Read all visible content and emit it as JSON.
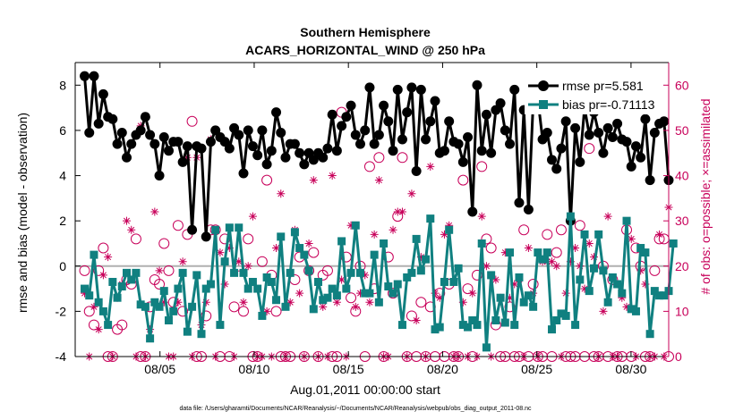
{
  "chart_data": {
    "type": "line",
    "title": [
      "Southern Hemisphere",
      "ACARS_HORIZONTAL_WIND @ 250 hPa"
    ],
    "xlabel": "Aug.01,2011 00:00:00 start",
    "ylabel": "rmse and bias (model - observation)",
    "y2label": "# of obs: o=possible; ×=assimilated",
    "footer": "data file: /Users/gharamti/Documents/NCAR/Reanalysis/~/Documents/NCAR/Reanalysis/webpub/obs_diag_output_2011-08.nc",
    "xlim": [
      0.5,
      32
    ],
    "ylim": [
      -4,
      9
    ],
    "y2lim": [
      0,
      65
    ],
    "xtick_positions": [
      5,
      10,
      15,
      20,
      25,
      30
    ],
    "xtick_labels": [
      "08/05",
      "08/10",
      "08/15",
      "08/20",
      "08/25",
      "08/30"
    ],
    "yticks": [
      -4,
      -2,
      0,
      2,
      4,
      6,
      8
    ],
    "y2ticks": [
      0,
      10,
      20,
      30,
      40,
      50,
      60
    ],
    "zero_line": 0,
    "legend_placement": "top-right",
    "colors": {
      "rmse": "#000000",
      "bias": "#108080",
      "obs": "#c8005a",
      "zero": "#b0b0b0"
    },
    "series": [
      {
        "name": "rmse pr=5.581",
        "values": [
          8.4,
          5.9,
          8.4,
          6.3,
          7.6,
          6.6,
          6.5,
          5.4,
          5.9,
          4.8,
          5.4,
          5.8,
          6.0,
          6.6,
          5.8,
          5.4,
          4.0,
          5.7,
          5.1,
          5.5,
          5.5,
          4.6,
          5.3,
          1.6,
          5.3,
          5.2,
          1.3,
          5.5,
          6.0,
          5.7,
          5.5,
          5.2,
          6.1,
          5.8,
          4.1,
          6.0,
          5.3,
          4.9,
          6.0,
          4.5,
          5.1,
          6.8,
          5.9,
          4.8,
          5.4,
          5.4,
          5.0,
          4.5,
          5.0,
          4.7,
          5.0,
          4.8,
          5.2,
          6.7,
          5.1,
          6.2,
          6.6,
          7.1,
          5.8,
          5.4,
          6.0,
          7.9,
          5.4,
          5.8,
          7.1,
          6.4,
          5.1,
          7.8,
          5.6,
          6.8,
          7.9,
          4.2,
          7.8,
          5.6,
          6.4,
          7.3,
          5.0,
          5.1,
          6.4,
          5.5,
          5.4,
          4.6,
          5.7,
          2.4,
          8.0,
          5.1,
          6.7,
          5.0,
          6.9,
          7.2,
          6.0,
          5.4,
          7.8,
          2.8,
          6.9,
          2.5,
          7.2,
          7.4,
          5.6,
          5.9,
          4.7,
          4.3,
          5.2,
          6.4,
          2.0,
          6.1,
          4.6,
          7.0,
          5.8,
          6.8,
          5.9,
          5.0,
          6.1,
          5.7,
          6.3,
          5.6,
          5.5,
          4.4,
          5.3,
          4.8,
          6.5,
          3.8,
          5.9,
          6.3,
          6.4,
          3.8
        ],
        "marker": "circle",
        "line_color": "#000000"
      },
      {
        "name": "bias pr=-0.71113",
        "values": [
          -1.0,
          -1.3,
          0.5,
          -1.6,
          -2.0,
          -2.6,
          -0.7,
          -1.4,
          -0.9,
          -0.3,
          -0.6,
          -0.3,
          -1.7,
          -1.8,
          -3.2,
          -1.6,
          -1.8,
          -1.1,
          -2.4,
          -2.0,
          -1.0,
          -0.3,
          -2.9,
          -1.8,
          -0.4,
          -3.0,
          -1.0,
          -0.8,
          1.6,
          -2.6,
          0.2,
          1.7,
          -0.3,
          1.7,
          -0.3,
          -1.0,
          -0.7,
          -1.0,
          -2.2,
          -0.5,
          -0.7,
          -1.5,
          1.3,
          -1.8,
          -0.3,
          1.5,
          0.8,
          0.5,
          -0.2,
          -1.9,
          -0.7,
          -1.5,
          -1.4,
          -1.0,
          -1.3,
          1.1,
          -1.0,
          -0.3,
          1.8,
          -0.3,
          -1.2,
          -1.2,
          0.5,
          -1.6,
          1.0,
          -0.9,
          -1.2,
          -0.8,
          -2.6,
          -0.5,
          -0.3,
          1.2,
          -0.2,
          0.3,
          2.1,
          -2.8,
          -2.7,
          -0.7,
          1.6,
          -0.7,
          -0.1,
          -2.6,
          -2.7,
          -2.4,
          -2.6,
          1.0,
          -3.6,
          -0.4,
          -2.4,
          -1.4,
          -2.5,
          0.6,
          -2.6,
          -0.5,
          -1.6,
          -1.3,
          -1.8,
          0.6,
          0.3,
          0.6,
          -2.8,
          -2.4,
          -2.1,
          -2.2,
          2.2,
          -2.6,
          -0.6,
          1.4,
          -1.1,
          -0.1,
          1.4,
          -0.2,
          -1.6,
          -0.5,
          -0.8,
          -1.2,
          2.0,
          -1.9,
          -2.0,
          0.8,
          0.6,
          -3.0,
          -1.1,
          -1.3,
          -1.3,
          -1.1,
          1.0
        ],
        "marker": "square",
        "line_color": "#108080"
      }
    ],
    "obs_possible": [
      19,
      10,
      7,
      19,
      24,
      0,
      0,
      6,
      7,
      17,
      16,
      26,
      0,
      0,
      11,
      17,
      16,
      25,
      19,
      12,
      29,
      10,
      27,
      52,
      0,
      0,
      9,
      28,
      28,
      0,
      26,
      0,
      11,
      20,
      10,
      26,
      0,
      0,
      21,
      39,
      18,
      10,
      0,
      0,
      0,
      17,
      22,
      0,
      19,
      23,
      0,
      18,
      19,
      0,
      0,
      54,
      22,
      13,
      10,
      20,
      0,
      42,
      15,
      44,
      0,
      22,
      14,
      31,
      44,
      0,
      9,
      0,
      12,
      0,
      11,
      0,
      14,
      0,
      16,
      0,
      0,
      39,
      15,
      0,
      18,
      42,
      26,
      24,
      7,
      0,
      0,
      11,
      0,
      0,
      28,
      0,
      16,
      0,
      0,
      27,
      0,
      23,
      28,
      0,
      0,
      0,
      29,
      0,
      46,
      0,
      0,
      20,
      0,
      17,
      0,
      0,
      28,
      0,
      24,
      20,
      0,
      0,
      19,
      26,
      26,
      0
    ],
    "obs_assimilated": [
      14,
      0,
      11,
      6,
      18,
      22,
      0,
      13,
      16,
      30,
      28,
      0,
      51,
      0,
      6,
      32,
      19,
      12,
      0,
      0,
      12,
      21,
      44,
      0,
      44,
      7,
      12,
      48,
      0,
      23,
      16,
      24,
      0,
      21,
      12,
      20,
      31,
      0,
      0,
      10,
      0,
      24,
      36,
      0,
      12,
      28,
      14,
      0,
      25,
      39,
      0,
      11,
      0,
      40,
      12,
      17,
      0,
      29,
      11,
      14,
      18,
      12,
      27,
      39,
      0,
      0,
      28,
      32,
      32,
      0,
      36,
      8,
      22,
      0,
      42,
      14,
      13,
      27,
      29,
      0,
      0,
      12,
      0,
      14,
      0,
      31,
      20,
      0,
      17,
      13,
      23,
      13,
      16,
      17,
      0,
      24,
      14,
      0,
      21,
      21,
      21,
      20,
      0,
      14,
      21,
      24,
      20,
      15,
      25,
      22,
      0,
      10,
      31,
      0,
      0,
      13,
      11,
      26,
      0,
      19,
      16,
      0,
      0,
      27,
      0,
      33
    ]
  }
}
